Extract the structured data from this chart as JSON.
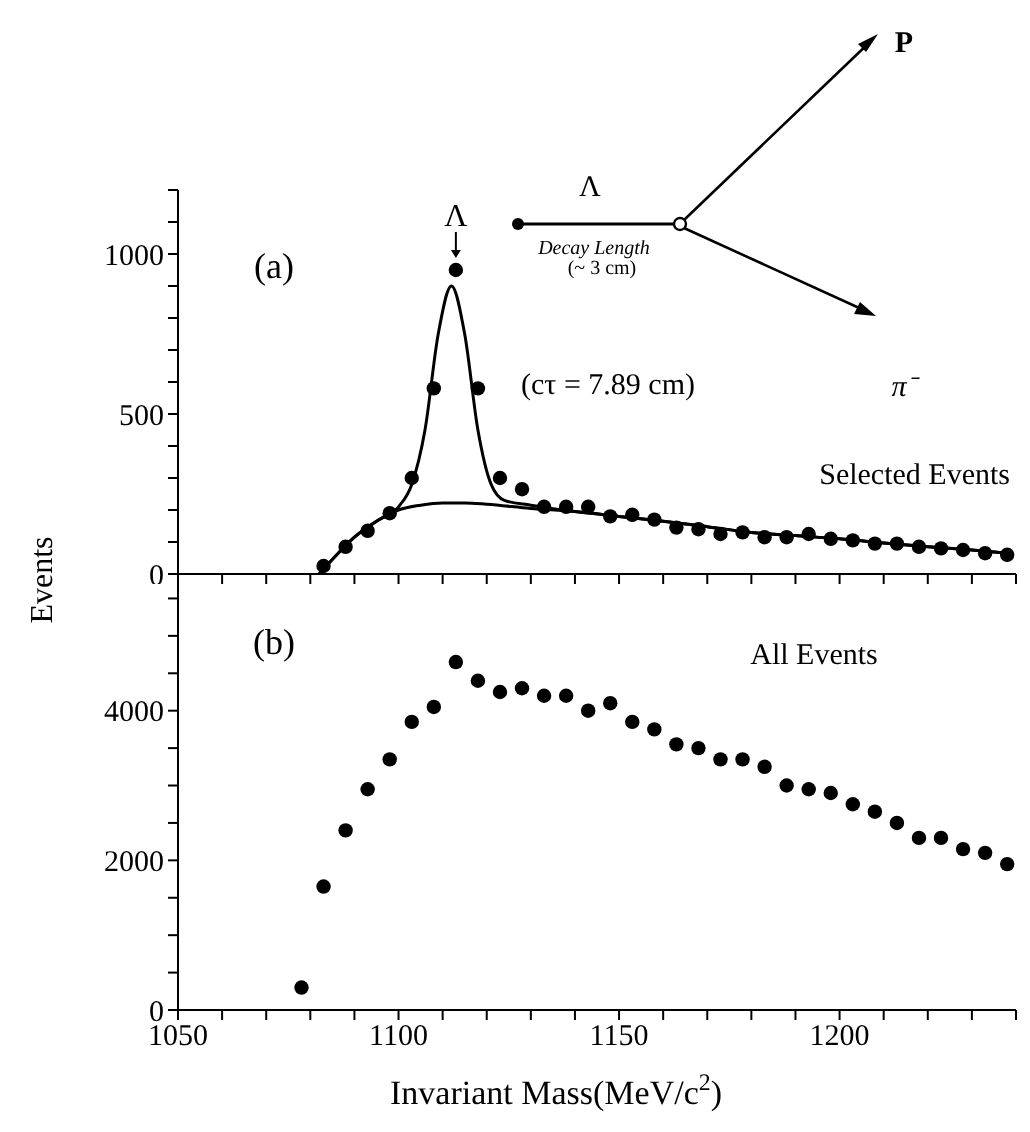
{
  "chart_data": [
    {
      "type": "scatter",
      "ylabel": "Events",
      "x": [
        1083,
        1088,
        1093,
        1098,
        1103,
        1108,
        1113,
        1118,
        1123,
        1128,
        1133,
        1138,
        1143,
        1148,
        1153,
        1158,
        1163,
        1168,
        1173,
        1178,
        1183,
        1188,
        1193,
        1198,
        1203,
        1208,
        1213,
        1218,
        1223,
        1228,
        1233,
        1238
      ],
      "xlim": [
        1050,
        1240
      ],
      "xticks": [
        1050,
        1060,
        1070,
        1080,
        1090,
        1100,
        1110,
        1120,
        1130,
        1140,
        1150,
        1160,
        1170,
        1180,
        1190,
        1200,
        1210,
        1220,
        1230,
        1240
      ],
      "ylim": [
        0,
        1200
      ],
      "yticks": [
        0,
        {
          "value": 100,
          "label": null
        },
        {
          "value": 200,
          "label": null
        },
        {
          "value": 300,
          "label": null
        },
        {
          "value": 400,
          "label": null
        },
        500,
        {
          "value": 600,
          "label": null
        },
        {
          "value": 700,
          "label": null
        },
        {
          "value": 800,
          "label": null
        },
        {
          "value": 900,
          "label": null
        },
        1000,
        {
          "value": 1100,
          "label": null
        },
        {
          "value": 1200,
          "label": null
        }
      ],
      "tick_labels": "y",
      "marker": "circle",
      "series": [
        {
          "color": "#000000",
          "values": [
            25,
            85,
            135,
            190,
            300,
            580,
            950,
            580,
            300,
            265,
            210,
            210,
            210,
            180,
            185,
            170,
            145,
            140,
            125,
            130,
            115,
            115,
            125,
            110,
            105,
            95,
            95,
            85,
            80,
            75,
            65,
            60
          ]
        },
        {
          "type": "line",
          "color": "#000000",
          "marker": "none",
          "x": [
            1082,
            1086,
            1090,
            1095,
            1100,
            1103,
            1106,
            1109,
            1112,
            1115,
            1118,
            1121,
            1124,
            1130,
            1140,
            1150,
            1160,
            1170,
            1180,
            1190,
            1200,
            1210,
            1220,
            1230,
            1238
          ],
          "values": [
            0,
            60,
            115,
            165,
            210,
            280,
            450,
            750,
            900,
            750,
            450,
            280,
            230,
            215,
            195,
            180,
            165,
            148,
            130,
            120,
            110,
            97,
            85,
            75,
            65
          ]
        },
        {
          "type": "line",
          "color": "#000000",
          "marker": "none",
          "x": [
            1082,
            1086,
            1090,
            1095,
            1100,
            1105,
            1110,
            1115,
            1120,
            1130,
            1140,
            1150,
            1160,
            1170,
            1180,
            1190,
            1200,
            1210,
            1220,
            1230,
            1238
          ],
          "values": [
            0,
            60,
            115,
            165,
            200,
            215,
            222,
            222,
            218,
            205,
            195,
            180,
            165,
            148,
            130,
            120,
            110,
            97,
            85,
            75,
            65
          ]
        }
      ],
      "annotations": [
        "(a)",
        {
          "text": "Λ",
          "x": 1113,
          "y": 950
        },
        "(cτ = 7.89 cm)",
        "Selected Events",
        "Λ",
        "Decay Length",
        "(~ 3 cm)",
        "P",
        "π⁻"
      ]
    },
    {
      "type": "scatter",
      "xlabel": "Invariant Mass(MeV/c$^{2}$)",
      "x": [
        1078,
        1083,
        1088,
        1093,
        1098,
        1103,
        1108,
        1113,
        1118,
        1123,
        1128,
        1133,
        1138,
        1143,
        1148,
        1153,
        1158,
        1163,
        1168,
        1173,
        1178,
        1183,
        1188,
        1193,
        1198,
        1203,
        1208,
        1213,
        1218,
        1223,
        1228,
        1233,
        1238
      ],
      "xlim": [
        1050,
        1240
      ],
      "xticks": [
        1050,
        {
          "value": 1060,
          "label": null
        },
        {
          "value": 1070,
          "label": null
        },
        {
          "value": 1080,
          "label": null
        },
        {
          "value": 1090,
          "label": null
        },
        1100,
        {
          "value": 1110,
          "label": null
        },
        {
          "value": 1120,
          "label": null
        },
        {
          "value": 1130,
          "label": null
        },
        {
          "value": 1140,
          "label": null
        },
        1150,
        {
          "value": 1160,
          "label": null
        },
        {
          "value": 1170,
          "label": null
        },
        {
          "value": 1180,
          "label": null
        },
        {
          "value": 1190,
          "label": null
        },
        1200,
        {
          "value": 1210,
          "label": null
        },
        {
          "value": 1220,
          "label": null
        },
        {
          "value": 1230,
          "label": null
        },
        {
          "value": 1240,
          "label": null
        }
      ],
      "ylim": [
        0,
        5800
      ],
      "yticks": [
        0,
        {
          "value": 500,
          "label": null
        },
        {
          "value": 1000,
          "label": null
        },
        {
          "value": 1500,
          "label": null
        },
        2000,
        {
          "value": 2500,
          "label": null
        },
        {
          "value": 3000,
          "label": null
        },
        {
          "value": 3500,
          "label": null
        },
        4000,
        {
          "value": 4500,
          "label": null
        },
        {
          "value": 5000,
          "label": null
        },
        {
          "value": 5500,
          "label": null
        }
      ],
      "marker": "circle",
      "series": [
        {
          "color": "#000000",
          "values": [
            300,
            1650,
            2400,
            2950,
            3350,
            3850,
            4050,
            4650,
            4400,
            4250,
            4300,
            4200,
            4200,
            4000,
            4100,
            3850,
            3750,
            3550,
            3500,
            3350,
            3350,
            3250,
            3000,
            2950,
            2900,
            2750,
            2650,
            2500,
            2300,
            2300,
            2150,
            2100,
            1950
          ]
        }
      ],
      "annotations": [
        "(b)",
        "All Events"
      ]
    }
  ]
}
